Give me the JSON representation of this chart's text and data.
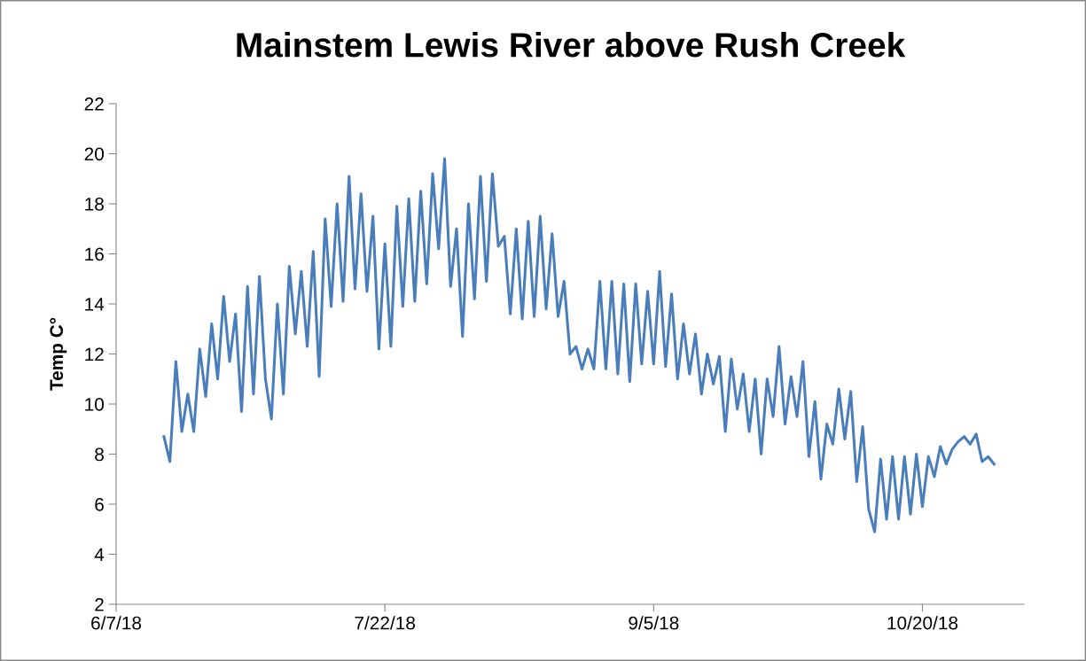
{
  "chart_data": {
    "type": "line",
    "title": "Mainstem Lewis River above Rush Creek",
    "ylabel": "Temp C°",
    "series": [
      {
        "color": "#4a7ebb",
        "x": [
          "2018-06-15",
          "2018-06-16",
          "2018-06-17",
          "2018-06-18",
          "2018-06-19",
          "2018-06-20",
          "2018-06-21",
          "2018-06-22",
          "2018-06-23",
          "2018-06-24",
          "2018-06-25",
          "2018-06-26",
          "2018-06-27",
          "2018-06-28",
          "2018-06-29",
          "2018-06-30",
          "2018-07-01",
          "2018-07-02",
          "2018-07-03",
          "2018-07-04",
          "2018-07-05",
          "2018-07-06",
          "2018-07-07",
          "2018-07-08",
          "2018-07-09",
          "2018-07-10",
          "2018-07-11",
          "2018-07-12",
          "2018-07-13",
          "2018-07-14",
          "2018-07-15",
          "2018-07-16",
          "2018-07-17",
          "2018-07-18",
          "2018-07-19",
          "2018-07-20",
          "2018-07-21",
          "2018-07-22",
          "2018-07-23",
          "2018-07-24",
          "2018-07-25",
          "2018-07-26",
          "2018-07-27",
          "2018-07-28",
          "2018-07-29",
          "2018-07-30",
          "2018-07-31",
          "2018-08-01",
          "2018-08-02",
          "2018-08-03",
          "2018-08-04",
          "2018-08-05",
          "2018-08-06",
          "2018-08-07",
          "2018-08-08",
          "2018-08-09",
          "2018-08-10",
          "2018-08-11",
          "2018-08-12",
          "2018-08-13",
          "2018-08-14",
          "2018-08-15",
          "2018-08-16",
          "2018-08-17",
          "2018-08-18",
          "2018-08-19",
          "2018-08-20",
          "2018-08-21",
          "2018-08-22",
          "2018-08-23",
          "2018-08-24",
          "2018-08-25",
          "2018-08-26",
          "2018-08-27",
          "2018-08-28",
          "2018-08-29",
          "2018-08-30",
          "2018-08-31",
          "2018-09-01",
          "2018-09-02",
          "2018-09-03",
          "2018-09-04",
          "2018-09-05",
          "2018-09-06",
          "2018-09-07",
          "2018-09-08",
          "2018-09-09",
          "2018-09-10",
          "2018-09-11",
          "2018-09-12",
          "2018-09-13",
          "2018-09-14",
          "2018-09-15",
          "2018-09-16",
          "2018-09-17",
          "2018-09-18",
          "2018-09-19",
          "2018-09-20",
          "2018-09-21",
          "2018-09-22",
          "2018-09-23",
          "2018-09-24",
          "2018-09-25",
          "2018-09-26",
          "2018-09-27",
          "2018-09-28",
          "2018-09-29",
          "2018-09-30",
          "2018-10-01",
          "2018-10-02",
          "2018-10-03",
          "2018-10-04",
          "2018-10-05",
          "2018-10-06",
          "2018-10-07",
          "2018-10-08",
          "2018-10-09",
          "2018-10-10",
          "2018-10-11",
          "2018-10-12",
          "2018-10-13",
          "2018-10-14",
          "2018-10-15",
          "2018-10-16",
          "2018-10-17",
          "2018-10-18",
          "2018-10-19",
          "2018-10-20",
          "2018-10-21",
          "2018-10-22",
          "2018-10-23",
          "2018-10-24",
          "2018-10-25",
          "2018-10-26",
          "2018-10-27",
          "2018-10-28",
          "2018-10-29",
          "2018-10-30",
          "2018-10-31",
          "2018-11-01"
        ],
        "values": [
          8.7,
          7.7,
          11.7,
          8.9,
          10.4,
          8.9,
          12.2,
          10.3,
          13.2,
          11.0,
          14.3,
          11.7,
          13.6,
          9.7,
          14.7,
          10.4,
          15.1,
          11.0,
          9.4,
          14.0,
          10.4,
          15.5,
          12.8,
          15.3,
          12.3,
          16.1,
          11.1,
          17.4,
          13.9,
          18.0,
          14.1,
          19.1,
          14.6,
          18.4,
          14.5,
          17.5,
          12.2,
          16.4,
          12.3,
          17.9,
          13.9,
          18.2,
          14.1,
          18.5,
          14.8,
          19.2,
          16.2,
          19.8,
          14.7,
          17.0,
          12.7,
          18.0,
          14.2,
          19.1,
          14.9,
          19.2,
          16.3,
          16.7,
          13.6,
          17.0,
          13.4,
          17.3,
          13.5,
          17.5,
          13.8,
          16.8,
          13.5,
          14.9,
          12.0,
          12.3,
          11.4,
          12.2,
          11.4,
          14.9,
          11.4,
          14.9,
          11.2,
          14.8,
          10.9,
          14.8,
          11.6,
          14.5,
          11.6,
          15.3,
          11.5,
          14.4,
          11.0,
          13.2,
          11.2,
          12.8,
          10.4,
          12.0,
          10.8,
          11.9,
          8.9,
          11.8,
          9.8,
          11.2,
          8.9,
          11.0,
          8.0,
          11.0,
          9.5,
          12.3,
          9.2,
          11.1,
          9.5,
          11.7,
          7.9,
          10.1,
          7.0,
          9.2,
          8.4,
          10.6,
          8.6,
          10.5,
          6.9,
          9.1,
          5.8,
          4.9,
          7.8,
          5.4,
          7.9,
          5.4,
          7.9,
          5.6,
          8.0,
          5.9,
          7.9,
          7.1,
          8.3,
          7.6,
          8.2,
          8.5,
          8.7,
          8.4,
          8.8,
          7.7,
          7.9,
          7.6
        ]
      }
    ],
    "xlim": [
      "2018-06-07",
      "2018-11-06"
    ],
    "xticks": [
      {
        "value": "2018-06-07",
        "label": "6/7/18"
      },
      {
        "value": "2018-07-22",
        "label": "7/22/18"
      },
      {
        "value": "2018-09-05",
        "label": "9/5/18"
      },
      {
        "value": "2018-10-20",
        "label": "10/20/18"
      }
    ],
    "ylim": [
      2,
      22
    ],
    "yticks": [
      2,
      4,
      6,
      8,
      10,
      12,
      14,
      16,
      18,
      20,
      22
    ],
    "grid": false,
    "legend": false
  }
}
